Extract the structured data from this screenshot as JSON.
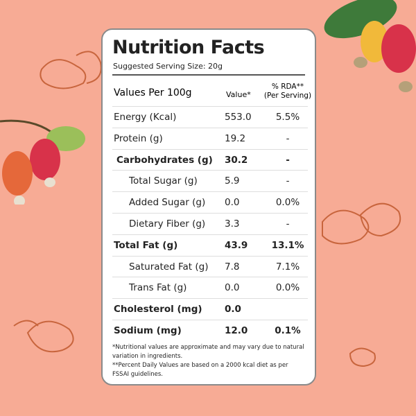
{
  "colors": {
    "background": "#f7ab95",
    "card": "#ffffff",
    "outline": "#c8653d"
  },
  "title": "Nutrition Facts",
  "serving": "Suggested Serving Size: 20g",
  "header": {
    "label": "Values Per 100g",
    "value": "Value*",
    "rda_line1": "% RDA**",
    "rda_line2": "(Per Serving)"
  },
  "rows": [
    {
      "label": "Energy (Kcal)",
      "value": "553.0",
      "rda": "5.5%"
    },
    {
      "label": "Protein (g)",
      "value": "19.2",
      "rda": "-"
    },
    {
      "label": "Carbohydrates (g)",
      "value": "30.2",
      "rda": "-"
    },
    {
      "label": "Total Sugar (g)",
      "value": "5.9",
      "rda": "-"
    },
    {
      "label": "Added Sugar (g)",
      "value": "0.0",
      "rda": "0.0%"
    },
    {
      "label": "Dietary Fiber (g)",
      "value": "3.3",
      "rda": "-"
    },
    {
      "label": "Total Fat (g)",
      "value": "43.9",
      "rda": "13.1%"
    },
    {
      "label": "Saturated Fat (g)",
      "value": "7.8",
      "rda": "7.1%"
    },
    {
      "label": "Trans Fat (g)",
      "value": "0.0",
      "rda": "0.0%"
    },
    {
      "label": "Cholesterol (mg)",
      "value": "0.0",
      "rda": ""
    },
    {
      "label": "Sodium (mg)",
      "value": "12.0",
      "rda": "0.1%"
    }
  ],
  "notes": [
    "*Nutritional values are approximate and may vary due to natural variation in ingredients.",
    "**Percent Daily Values are based on a 2000 kcal diet as per FSSAI guidelines."
  ]
}
